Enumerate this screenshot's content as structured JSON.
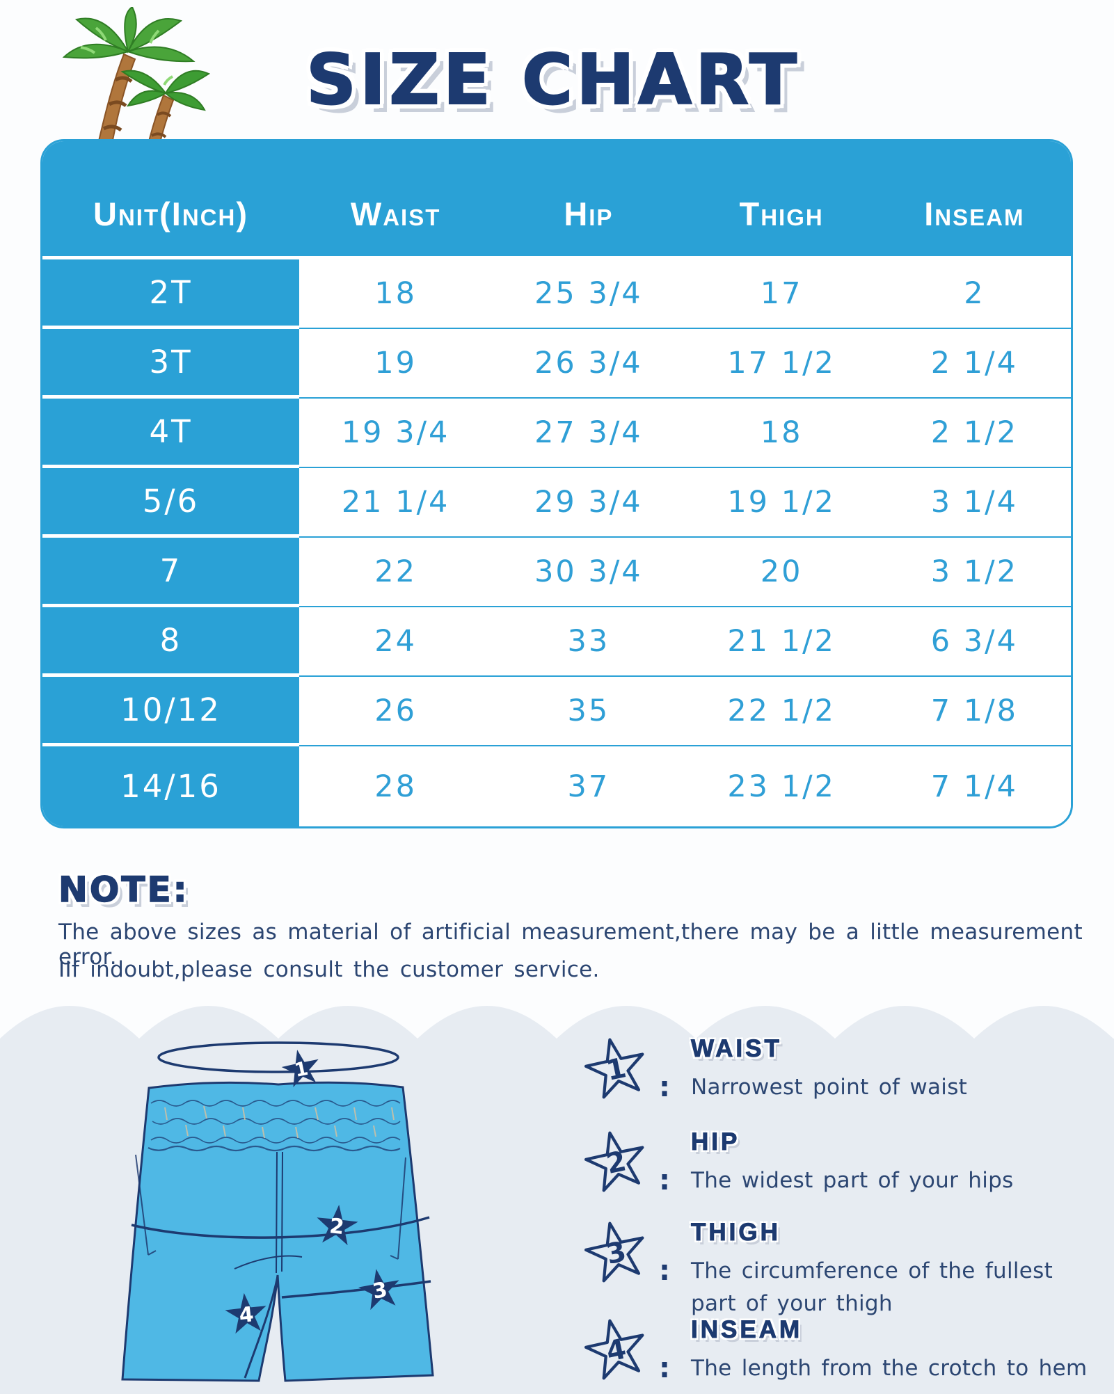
{
  "title": "SIZE CHART",
  "table": {
    "headers": [
      "Unit(Inch)",
      "Waist",
      "Hip",
      "Thigh",
      "Inseam"
    ],
    "rows": [
      [
        "2T",
        "18",
        "25 3/4",
        "17",
        "2"
      ],
      [
        "3T",
        "19",
        "26 3/4",
        "17 1/2",
        "2 1/4"
      ],
      [
        "4T",
        "19 3/4",
        "27 3/4",
        "18",
        "2 1/2"
      ],
      [
        "5/6",
        "21 1/4",
        "29 3/4",
        "19 1/2",
        "3 1/4"
      ],
      [
        "7",
        "22",
        "30 3/4",
        "20",
        "3 1/2"
      ],
      [
        "8",
        "24",
        "33",
        "21 1/2",
        "6 3/4"
      ],
      [
        "10/12",
        "26",
        "35",
        "22 1/2",
        "7 1/8"
      ],
      [
        "14/16",
        "28",
        "37",
        "23 1/2",
        "7 1/4"
      ]
    ]
  },
  "note": {
    "heading": "NOTE:",
    "lines": [
      "The above sizes as material of artificial measurement,there may be a little measurement error.",
      "IIf indoubt,please consult the customer service."
    ]
  },
  "legend": [
    {
      "num": "1",
      "label": "WAIST",
      "desc": "Narrowest point of waist"
    },
    {
      "num": "2",
      "label": "HIP",
      "desc": "The widest part of your hips"
    },
    {
      "num": "3",
      "label": "THIGH",
      "desc": "The circumference of the fullest\npart of your thigh"
    },
    {
      "num": "4",
      "label": "INSEAM",
      "desc": "The length from the crotch to hem"
    }
  ],
  "diagram": {
    "markers": [
      "1",
      "2",
      "3",
      "4"
    ]
  },
  "colors": {
    "table_blue": "#2aa1d6",
    "cell_text_blue": "#2f9fd6",
    "navy": "#1d3a70",
    "note_text": "#2c4672",
    "bottom_bg": "#e7ecf2",
    "shorts_fill": "#4fb8e5"
  }
}
